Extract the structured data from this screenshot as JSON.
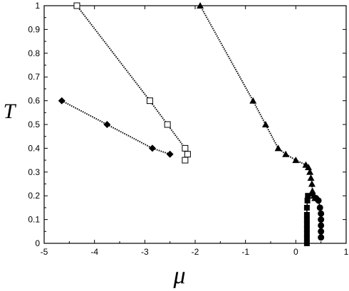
{
  "chart_data": {
    "type": "scatter",
    "xlabel": "μ",
    "ylabel": "T",
    "xlim": [
      -5,
      1
    ],
    "ylim": [
      0,
      1
    ],
    "xticks": [
      "-5",
      "-4",
      "-3",
      "-2",
      "-1",
      "0",
      "1"
    ],
    "yticks": [
      "0",
      "0.1",
      "0.2",
      "0.3",
      "0.4",
      "0.5",
      "0.6",
      "0.7",
      "0.8",
      "0.9",
      "1"
    ],
    "grid": false,
    "series": [
      {
        "marker": "open-square",
        "line": "dotted",
        "x": [
          -4.35,
          -2.9,
          -2.55,
          -2.2,
          -2.15,
          -2.2
        ],
        "y": [
          1.0,
          0.6,
          0.5,
          0.4,
          0.375,
          0.35
        ]
      },
      {
        "marker": "filled-diamond",
        "line": "dotted",
        "x": [
          -4.65,
          -3.75,
          -2.85,
          -2.5
        ],
        "y": [
          0.6,
          0.5,
          0.4,
          0.375
        ]
      },
      {
        "marker": "filled-triangle",
        "line": "dotted",
        "x": [
          -1.9,
          -0.85,
          -0.6,
          -0.35,
          -0.2,
          0.0,
          0.2,
          0.25,
          0.28,
          0.3,
          0.32,
          0.33,
          0.34,
          0.36,
          0.38
        ],
        "y": [
          1.0,
          0.6,
          0.5,
          0.4,
          0.375,
          0.35,
          0.33,
          0.32,
          0.3,
          0.275,
          0.25,
          0.22,
          0.21,
          0.2,
          0.19
        ]
      },
      {
        "marker": "filled-square",
        "line": "solid",
        "x": [
          0.22,
          0.22,
          0.22,
          0.22,
          0.22,
          0.22,
          0.22,
          0.22,
          0.23,
          0.24
        ],
        "y": [
          0.0,
          0.02,
          0.04,
          0.06,
          0.08,
          0.1,
          0.12,
          0.15,
          0.18,
          0.2
        ]
      },
      {
        "marker": "filled-circle",
        "line": "solid",
        "x": [
          0.4,
          0.45,
          0.48,
          0.5,
          0.5,
          0.5,
          0.5,
          0.5
        ],
        "y": [
          0.19,
          0.18,
          0.15,
          0.125,
          0.1,
          0.075,
          0.05,
          0.025
        ]
      }
    ]
  }
}
